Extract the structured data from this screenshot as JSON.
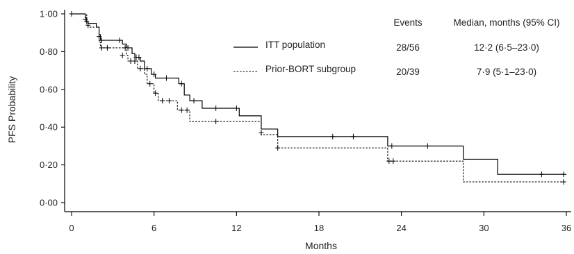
{
  "chart_data": {
    "type": "line",
    "subtype": "kaplan-meier",
    "title": "",
    "xlabel": "Months",
    "ylabel": "PFS Probability",
    "xlim": [
      0,
      36
    ],
    "ylim": [
      0,
      1
    ],
    "x_ticks": [
      0,
      6,
      12,
      18,
      24,
      30,
      36
    ],
    "x_tick_labels": [
      "0",
      "6",
      "12",
      "18",
      "24",
      "30",
      "36"
    ],
    "y_ticks": [
      0,
      0.2,
      0.4,
      0.6,
      0.8,
      1.0
    ],
    "y_tick_labels": [
      "0·00",
      "0·20",
      "0·40",
      "0·60",
      "0·80",
      "1·00"
    ],
    "grid": false,
    "legend_position": "top-right",
    "table_headers": {
      "events": "Events",
      "median": "Median, months (95% CI)"
    },
    "series": [
      {
        "name": "ITT population",
        "line_style": "solid",
        "color": "#000000",
        "events": "28/56",
        "median": "12·2 (6·5–23·0)",
        "steps": [
          [
            0,
            1.0
          ],
          [
            1.0,
            0.98
          ],
          [
            1.1,
            0.96
          ],
          [
            1.2,
            0.95
          ],
          [
            1.8,
            0.93
          ],
          [
            2.0,
            0.89
          ],
          [
            2.1,
            0.86
          ],
          [
            3.7,
            0.84
          ],
          [
            4.0,
            0.82
          ],
          [
            4.4,
            0.79
          ],
          [
            4.6,
            0.77
          ],
          [
            5.0,
            0.75
          ],
          [
            5.3,
            0.71
          ],
          [
            5.8,
            0.68
          ],
          [
            6.1,
            0.66
          ],
          [
            7.8,
            0.63
          ],
          [
            8.2,
            0.57
          ],
          [
            8.6,
            0.54
          ],
          [
            9.5,
            0.5
          ],
          [
            12.2,
            0.46
          ],
          [
            13.8,
            0.42
          ],
          [
            13.8,
            0.39
          ],
          [
            15.0,
            0.35
          ],
          [
            23.0,
            0.3
          ],
          [
            28.5,
            0.23
          ],
          [
            31.0,
            0.15
          ],
          [
            36.0,
            0.15
          ]
        ],
        "censored": [
          [
            0,
            1.0
          ],
          [
            1.0,
            0.97
          ],
          [
            1.1,
            0.96
          ],
          [
            2.0,
            0.88
          ],
          [
            2.2,
            0.86
          ],
          [
            3.5,
            0.86
          ],
          [
            3.9,
            0.82
          ],
          [
            4.1,
            0.82
          ],
          [
            4.7,
            0.77
          ],
          [
            4.9,
            0.77
          ],
          [
            5.5,
            0.71
          ],
          [
            6.0,
            0.68
          ],
          [
            6.9,
            0.66
          ],
          [
            8.0,
            0.63
          ],
          [
            8.9,
            0.54
          ],
          [
            10.5,
            0.5
          ],
          [
            12.0,
            0.5
          ],
          [
            19.0,
            0.35
          ],
          [
            20.5,
            0.35
          ],
          [
            23.3,
            0.3
          ],
          [
            25.9,
            0.3
          ],
          [
            34.2,
            0.15
          ],
          [
            35.8,
            0.15
          ]
        ]
      },
      {
        "name": "Prior-BORT subgroup",
        "line_style": "dashed",
        "color": "#000000",
        "events": "20/39",
        "median": "7·9 (5·1–23·0)",
        "steps": [
          [
            0,
            1.0
          ],
          [
            1.1,
            0.96
          ],
          [
            1.2,
            0.93
          ],
          [
            2.0,
            0.85
          ],
          [
            2.1,
            0.82
          ],
          [
            4.0,
            0.78
          ],
          [
            4.1,
            0.75
          ],
          [
            4.8,
            0.71
          ],
          [
            5.3,
            0.68
          ],
          [
            5.5,
            0.63
          ],
          [
            6.0,
            0.58
          ],
          [
            6.3,
            0.54
          ],
          [
            7.7,
            0.49
          ],
          [
            8.6,
            0.43
          ],
          [
            13.8,
            0.36
          ],
          [
            15.0,
            0.29
          ],
          [
            23.0,
            0.22
          ],
          [
            28.5,
            0.11
          ],
          [
            36.0,
            0.11
          ]
        ],
        "censored": [
          [
            0,
            1.0
          ],
          [
            1.2,
            0.94
          ],
          [
            2.2,
            0.82
          ],
          [
            2.6,
            0.82
          ],
          [
            3.7,
            0.78
          ],
          [
            4.3,
            0.75
          ],
          [
            4.6,
            0.75
          ],
          [
            5.0,
            0.71
          ],
          [
            5.7,
            0.63
          ],
          [
            6.1,
            0.58
          ],
          [
            6.6,
            0.54
          ],
          [
            7.1,
            0.54
          ],
          [
            8.0,
            0.49
          ],
          [
            8.4,
            0.49
          ],
          [
            10.5,
            0.43
          ],
          [
            13.8,
            0.37
          ],
          [
            15.0,
            0.29
          ],
          [
            23.1,
            0.22
          ],
          [
            23.4,
            0.22
          ],
          [
            35.8,
            0.11
          ]
        ]
      }
    ]
  }
}
